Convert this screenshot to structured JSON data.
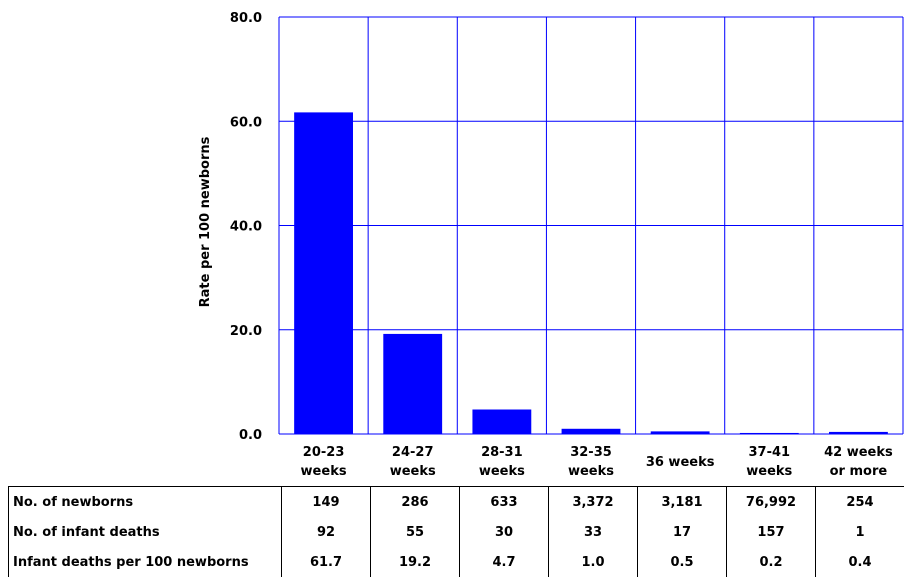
{
  "chart_data": {
    "type": "bar",
    "ylabel": "Rate per 100 newborns",
    "ylim": [
      0,
      80
    ],
    "yticks": [
      "0.0",
      "20.0",
      "40.0",
      "60.0",
      "80.0"
    ],
    "grid": true,
    "bar_color": "#0000FF",
    "grid_color": "#0000FF",
    "categories": [
      [
        "20-23",
        "weeks"
      ],
      [
        "24-27",
        "weeks"
      ],
      [
        "28-31",
        "weeks"
      ],
      [
        "32-35",
        "weeks"
      ],
      [
        "36 weeks"
      ],
      [
        "37-41",
        "weeks"
      ],
      [
        "42 weeks",
        "or more"
      ]
    ],
    "values": [
      61.7,
      19.2,
      4.7,
      1.0,
      0.5,
      0.2,
      0.4
    ]
  },
  "table": {
    "rows": [
      {
        "label": "No. of newborns",
        "values": [
          "149",
          "286",
          "633",
          "3,372",
          "3,181",
          "76,992",
          "254"
        ]
      },
      {
        "label": "No. of infant deaths",
        "values": [
          "92",
          "55",
          "30",
          "33",
          "17",
          "157",
          "1"
        ]
      },
      {
        "label": "Infant deaths per  100 newborns",
        "values": [
          "61.7",
          "19.2",
          "4.7",
          "1.0",
          "0.5",
          "0.2",
          "0.4"
        ]
      }
    ]
  }
}
